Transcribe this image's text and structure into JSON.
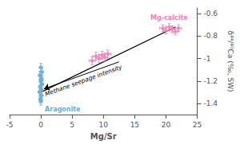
{
  "chart_data": {
    "type": "scatter",
    "xlabel": "Mg/Sr",
    "ylabel": "δ⁴⁴/⁴⁰Ca (‰, SW)",
    "xlim": [
      -5,
      25
    ],
    "xticks": [
      -5,
      0,
      5,
      10,
      15,
      20,
      25
    ],
    "ylim": [
      -1.5,
      -0.55
    ],
    "yticks": [
      -0.6,
      -0.8,
      -1.0,
      -1.2,
      -1.4
    ],
    "grid": false,
    "series": [
      {
        "name": "Aragonite",
        "color": "#6aaed6",
        "marker": "diamond",
        "x": [
          0.0,
          0.15,
          -0.15,
          0.1,
          0.0,
          0.2,
          -0.1,
          0.05,
          -0.2,
          0.1,
          -0.05,
          0.0
        ],
        "values": [
          -1.08,
          -1.12,
          -1.15,
          -1.18,
          -1.2,
          -1.23,
          -1.25,
          -1.28,
          -1.3,
          -1.33,
          -1.36,
          -1.38
        ],
        "x_err": [
          0.25,
          0.25,
          0.25,
          0.25,
          0.25,
          0.25,
          0.25,
          0.25,
          0.25,
          0.25,
          0.25,
          0.25
        ],
        "y_err": [
          0.035,
          0.035,
          0.035,
          0.035,
          0.035,
          0.035,
          0.035,
          0.035,
          0.035,
          0.035,
          0.035,
          0.035
        ]
      },
      {
        "name": "Mg-calcite",
        "color": "#ee82b8",
        "marker": "diamond",
        "x": [
          8.2,
          8.8,
          9.3,
          9.8,
          10.2,
          10.7,
          19.5,
          20.0,
          20.5,
          21.0,
          21.5,
          22.0
        ],
        "values": [
          -1.02,
          -0.98,
          -1.0,
          -0.97,
          -0.99,
          -0.96,
          -0.73,
          -0.75,
          -0.72,
          -0.74,
          -0.76,
          -0.73
        ],
        "x_err": [
          0.5,
          0.5,
          0.5,
          0.5,
          0.5,
          0.5,
          0.5,
          0.5,
          0.5,
          0.5,
          0.5,
          0.5
        ],
        "y_err": [
          0.035,
          0.035,
          0.035,
          0.035,
          0.035,
          0.035,
          0.03,
          0.03,
          0.03,
          0.03,
          0.03,
          0.03
        ]
      },
      {
        "type": "line",
        "color": "#000000",
        "x": [
          0.0,
          21.5
        ],
        "values": [
          -1.3,
          -0.72
        ]
      }
    ],
    "annotations": [
      {
        "text": "Methane seepage intensity",
        "x": [
          12.5,
          0.5
        ],
        "y": [
          -1.03,
          -1.27
        ]
      }
    ]
  }
}
